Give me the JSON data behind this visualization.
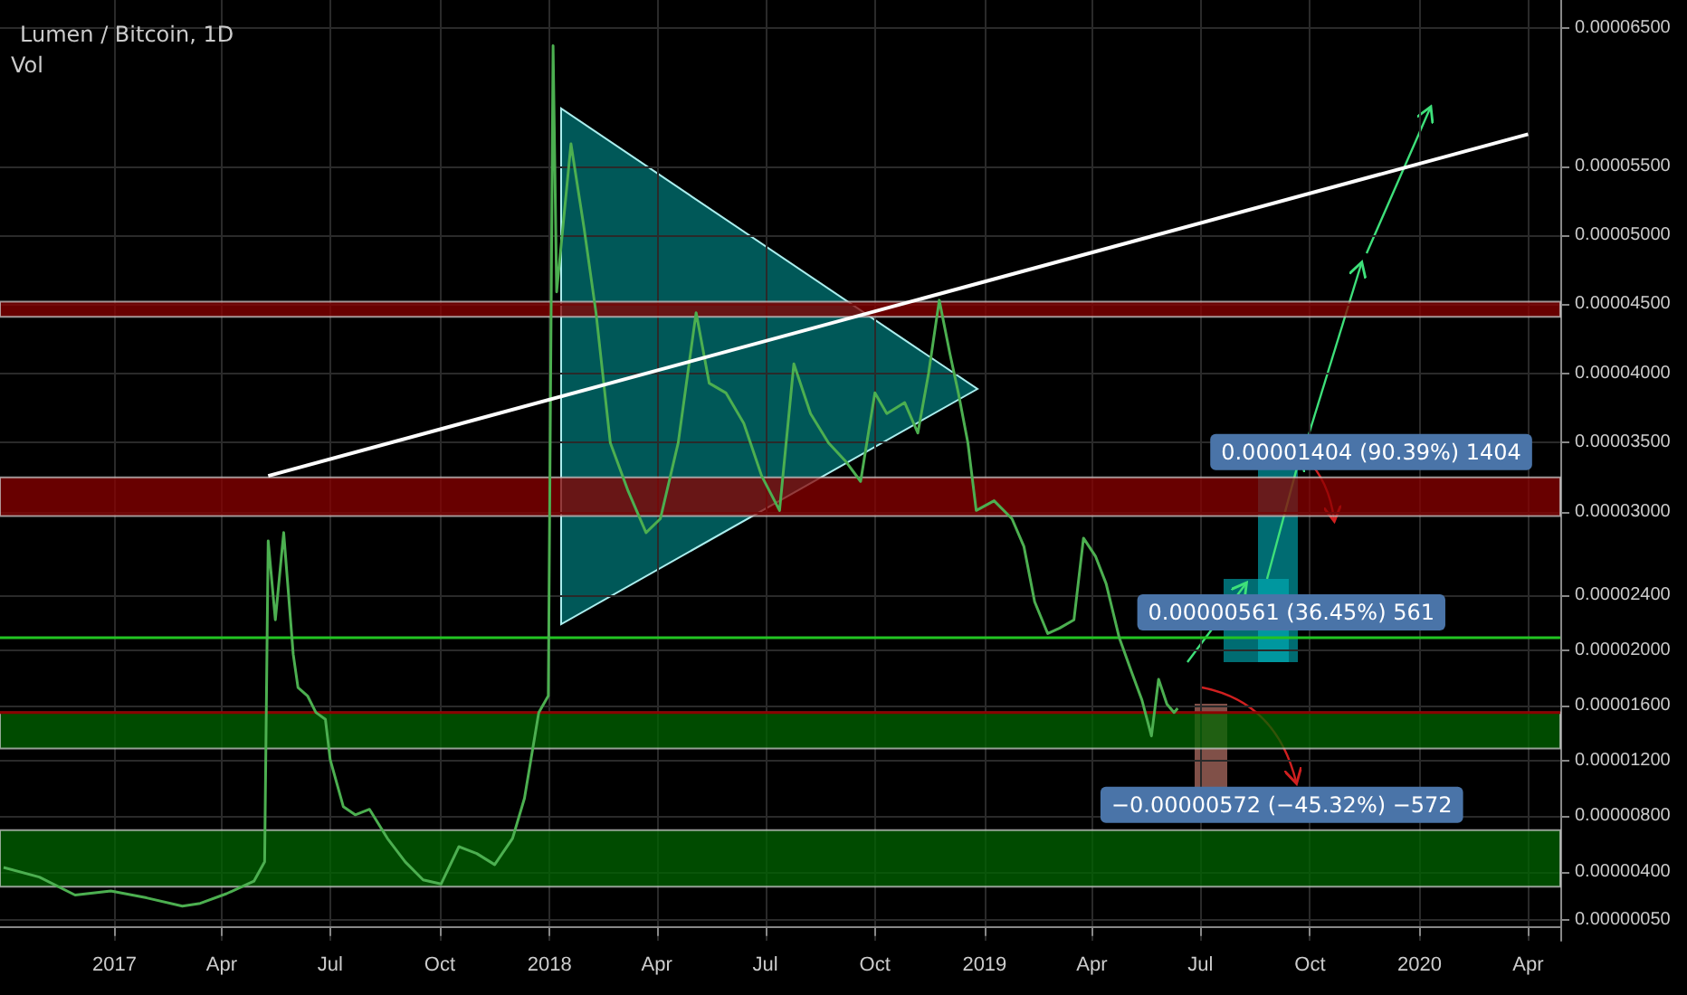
{
  "chart_data": {
    "type": "line",
    "title": "Lumen / Bitcoin, 1D",
    "annotations": [
      "Vol",
      {
        "text": "0.00001404 (90.39%) 1404",
        "x": "2019-09-14",
        "y": 3.25e-05
      },
      {
        "text": "0.00000561 (36.45%) 561",
        "x": "2019-07-09",
        "y": 2.09e-05
      },
      {
        "text": "−0.00000572 (−45.32%) −572",
        "x": "2019-07-01",
        "y": 7e-06
      }
    ],
    "xlim": [
      "2016-09-27",
      "2020-04-28"
    ],
    "xticks": [
      {
        "value": "2017-01-01",
        "label": "2017"
      },
      {
        "value": "2017-04-01",
        "label": "Apr"
      },
      {
        "value": "2017-07-01",
        "label": "Jul"
      },
      {
        "value": "2017-10-01",
        "label": "Oct"
      },
      {
        "value": "2018-01-01",
        "label": "2018"
      },
      {
        "value": "2018-04-01",
        "label": "Apr"
      },
      {
        "value": "2018-07-01",
        "label": "Jul"
      },
      {
        "value": "2018-10-01",
        "label": "Oct"
      },
      {
        "value": "2019-01-01",
        "label": "2019"
      },
      {
        "value": "2019-04-01",
        "label": "Apr"
      },
      {
        "value": "2019-07-01",
        "label": "Jul"
      },
      {
        "value": "2019-10-01",
        "label": "Oct"
      },
      {
        "value": "2020-01-01",
        "label": "2020"
      },
      {
        "value": "2020-04-01",
        "label": "Apr"
      }
    ],
    "ylim": [
      -1e-06,
      6.7e-05
    ],
    "yticks": [
      {
        "value": 5e-07,
        "label": "0.00000050"
      },
      {
        "value": 4e-06,
        "label": "0.00000400"
      },
      {
        "value": 8e-06,
        "label": "0.00000800"
      },
      {
        "value": 1.2e-05,
        "label": "0.00001200"
      },
      {
        "value": 1.6e-05,
        "label": "0.00001600"
      },
      {
        "value": 2e-05,
        "label": "0.00002000"
      },
      {
        "value": 2.4e-05,
        "label": "0.00002400"
      },
      {
        "value": 3e-05,
        "label": "0.00003000"
      },
      {
        "value": 3.5e-05,
        "label": "0.00003500"
      },
      {
        "value": 4e-05,
        "label": "0.00004000"
      },
      {
        "value": 4.5e-05,
        "label": "0.00004500"
      },
      {
        "value": 5e-05,
        "label": "0.00005000"
      },
      {
        "value": 5.5e-05,
        "label": "0.00005500"
      },
      {
        "value": 6.5e-05,
        "label": "0.00006500"
      }
    ],
    "grid": true,
    "marker": "none",
    "series": [
      {
        "color": "#4caf50",
        "x": [
          "2016-09-30",
          "2016-10-30",
          "2016-11-29",
          "2016-12-29",
          "2017-01-28",
          "2017-02-27",
          "2017-03-14",
          "2017-04-05",
          "2017-04-28",
          "2017-05-07",
          "2017-05-10",
          "2017-05-16",
          "2017-05-23",
          "2017-05-31",
          "2017-06-04",
          "2017-06-12",
          "2017-06-19",
          "2017-06-27",
          "2017-07-01",
          "2017-07-12",
          "2017-07-22",
          "2017-08-03",
          "2017-08-18",
          "2017-09-02",
          "2017-09-17",
          "2017-10-02",
          "2017-10-17",
          "2017-11-01",
          "2017-11-16",
          "2017-12-01",
          "2017-12-11",
          "2017-12-23",
          "2017-12-31",
          "2018-01-04",
          "2018-01-07",
          "2018-01-19",
          "2018-01-30",
          "2018-02-09",
          "2018-02-21",
          "2018-03-08",
          "2018-03-23",
          "2018-04-04",
          "2018-04-19",
          "2018-05-04",
          "2018-05-15",
          "2018-05-29",
          "2018-06-13",
          "2018-06-28",
          "2018-07-13",
          "2018-07-25",
          "2018-08-08",
          "2018-08-23",
          "2018-09-07",
          "2018-09-19",
          "2018-10-01",
          "2018-10-11",
          "2018-10-26",
          "2018-11-06",
          "2018-11-15",
          "2018-11-24",
          "2018-12-03",
          "2018-12-10",
          "2018-12-18",
          "2018-12-25",
          "2019-01-09",
          "2019-01-24",
          "2019-02-03",
          "2019-02-12",
          "2019-02-23",
          "2019-03-05",
          "2019-03-17",
          "2019-03-25",
          "2019-04-04",
          "2019-04-13",
          "2019-04-24",
          "2019-05-04",
          "2019-05-13",
          "2019-05-21",
          "2019-05-27",
          "2019-06-03",
          "2019-06-09",
          "2019-06-12"
        ],
        "values": [
          4.3e-06,
          3.6e-06,
          2.3e-06,
          2.6e-06,
          2.1e-06,
          1.5e-06,
          1.7e-06,
          2.4e-06,
          3.3e-06,
          4.7e-06,
          2.79e-05,
          2.22e-05,
          2.85e-05,
          1.97e-05,
          1.73e-05,
          1.67e-05,
          1.55e-05,
          1.5e-05,
          1.21e-05,
          8.7e-06,
          8.1e-06,
          8.5e-06,
          6.4e-06,
          4.7e-06,
          3.4e-06,
          3.1e-06,
          5.8e-06,
          5.3e-06,
          4.5e-06,
          6.4e-06,
          9.3e-06,
          1.55e-05,
          1.67e-05,
          6.37e-05,
          4.59e-05,
          5.66e-05,
          5.05e-05,
          4.44e-05,
          3.5e-05,
          3.15e-05,
          2.85e-05,
          2.95e-05,
          3.5e-05,
          4.44e-05,
          3.93e-05,
          3.86e-05,
          3.64e-05,
          3.26e-05,
          3.01e-05,
          4.07e-05,
          3.71e-05,
          3.5e-05,
          3.36e-05,
          3.22e-05,
          3.86e-05,
          3.71e-05,
          3.79e-05,
          3.57e-05,
          4e-05,
          4.53e-05,
          4.14e-05,
          3.86e-05,
          3.5e-05,
          3.01e-05,
          3.08e-05,
          2.95e-05,
          2.75e-05,
          2.35e-05,
          2.12e-05,
          2.16e-05,
          2.22e-05,
          2.81e-05,
          2.68e-05,
          2.48e-05,
          2.09e-05,
          1.85e-05,
          1.64e-05,
          1.38e-05,
          1.79e-05,
          1.61e-05,
          1.55e-05,
          1.58e-05
        ]
      },
      {
        "color": "#ffffff",
        "x": [
          "2017-05-10",
          "2020-04-01"
        ],
        "values": [
          3.26e-05,
          5.73e-05
        ]
      }
    ],
    "ref_lines": [
      {
        "axis": "y",
        "value": 2.09e-05,
        "color": "#22c322",
        "line_style": "solid"
      },
      {
        "axis": "y",
        "value": 1.55e-05,
        "color": "#8b0000",
        "line_style": "solid"
      }
    ],
    "bands": [
      {
        "axis": "y",
        "from": 4.41e-05,
        "to": 4.52e-05,
        "color": "#8b0000"
      },
      {
        "axis": "y",
        "from": 2.97e-05,
        "to": 3.25e-05,
        "color": "#8b0000"
      },
      {
        "axis": "y",
        "from": 1.29e-05,
        "to": 1.55e-05,
        "color": "#006400"
      },
      {
        "axis": "y",
        "from": 2.9e-06,
        "to": 7e-06,
        "color": "#006400"
      }
    ]
  }
}
